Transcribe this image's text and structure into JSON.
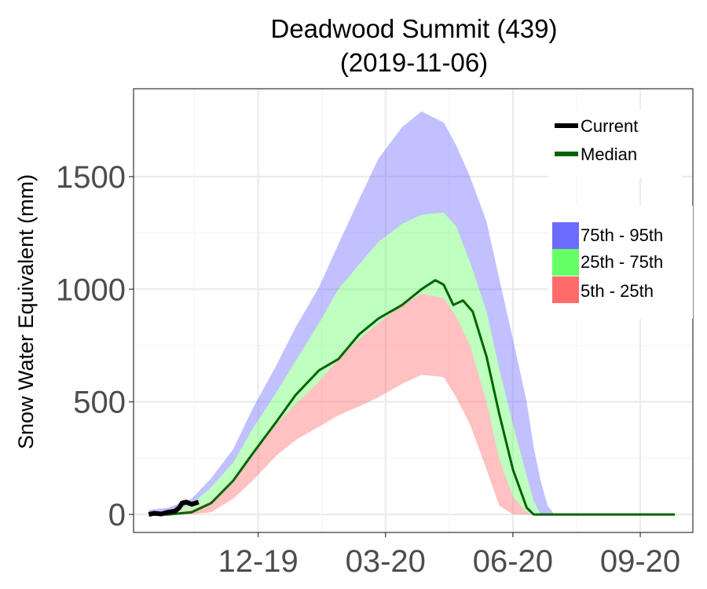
{
  "chart_data": {
    "type": "area",
    "title": "Deadwood Summit (439)",
    "subtitle": "(2019-11-06)",
    "xlabel": "",
    "ylabel": "Snow Water Equivalent (mm)",
    "x_tick_labels": [
      "12-19",
      "03-20",
      "06-20",
      "09-20"
    ],
    "x_tick_dates": [
      "2019-12-19",
      "2020-03-20",
      "2020-06-20",
      "2020-09-20"
    ],
    "y_ticks": [
      0,
      500,
      1000,
      1500
    ],
    "ylim": [
      -80,
      1890
    ],
    "xlim": [
      "2019-09-20",
      "2020-10-28"
    ],
    "grid": true,
    "legend_position": "right",
    "legend_lines": [
      {
        "label": "Current",
        "color": "#000000"
      },
      {
        "label": "Median",
        "color": "#006400"
      }
    ],
    "legend_bands": [
      {
        "label": "75th - 95th",
        "color": "#6b6bff"
      },
      {
        "label": "25th - 75th",
        "color": "#66ff66"
      },
      {
        "label": "5th - 25th",
        "color": "#ff6b6b"
      }
    ],
    "colors": {
      "band_75_95": "rgba(107,107,255,0.42)",
      "band_25_75": "rgba(102,255,102,0.42)",
      "band_5_25": "rgba(255,107,107,0.42)",
      "median": "#006400",
      "current": "#000000"
    },
    "percentiles": {
      "dates": [
        "2019-10-01",
        "2019-10-15",
        "2019-11-01",
        "2019-11-15",
        "2019-12-01",
        "2019-12-15",
        "2020-01-01",
        "2020-01-15",
        "2020-02-01",
        "2020-02-15",
        "2020-03-01",
        "2020-03-15",
        "2020-04-01",
        "2020-04-15",
        "2020-05-01",
        "2020-05-10",
        "2020-05-20",
        "2020-06-01",
        "2020-06-10",
        "2020-06-20",
        "2020-06-30",
        "2020-07-05",
        "2020-07-10",
        "2020-07-15",
        "2020-07-20",
        "2020-07-25",
        "2020-08-01",
        "2020-10-15"
      ],
      "p5": [
        0,
        0,
        0,
        10,
        70,
        150,
        260,
        330,
        390,
        440,
        480,
        520,
        580,
        620,
        610,
        520,
        400,
        200,
        40,
        0,
        0,
        0,
        0,
        0,
        0,
        0,
        0,
        0
      ],
      "p25": [
        0,
        5,
        20,
        60,
        140,
        260,
        400,
        490,
        590,
        690,
        780,
        850,
        930,
        980,
        960,
        880,
        750,
        500,
        250,
        80,
        10,
        0,
        0,
        0,
        0,
        0,
        0,
        0
      ],
      "p75": [
        0,
        10,
        45,
        120,
        230,
        380,
        540,
        680,
        850,
        1000,
        1110,
        1210,
        1290,
        1330,
        1340,
        1280,
        1120,
        900,
        650,
        400,
        170,
        60,
        0,
        0,
        0,
        0,
        0,
        0
      ],
      "p95": [
        20,
        30,
        70,
        160,
        290,
        470,
        660,
        830,
        1010,
        1200,
        1400,
        1580,
        1720,
        1790,
        1740,
        1640,
        1500,
        1300,
        1050,
        780,
        500,
        300,
        150,
        40,
        0,
        0,
        0,
        0
      ]
    },
    "median": {
      "dates": [
        "2019-10-01",
        "2019-10-15",
        "2019-11-01",
        "2019-11-15",
        "2019-12-01",
        "2019-12-15",
        "2020-01-01",
        "2020-01-15",
        "2020-02-01",
        "2020-02-15",
        "2020-03-01",
        "2020-03-15",
        "2020-04-01",
        "2020-04-15",
        "2020-04-25",
        "2020-05-01",
        "2020-05-08",
        "2020-05-15",
        "2020-05-22",
        "2020-06-01",
        "2020-06-10",
        "2020-06-20",
        "2020-06-30",
        "2020-07-05",
        "2020-07-10",
        "2020-08-01",
        "2020-10-15"
      ],
      "values": [
        0,
        0,
        10,
        50,
        150,
        270,
        410,
        530,
        640,
        690,
        800,
        870,
        930,
        1000,
        1040,
        1020,
        930,
        950,
        900,
        700,
        450,
        200,
        30,
        0,
        0,
        0,
        0
      ]
    },
    "current": {
      "dates": [
        "2019-10-01",
        "2019-10-05",
        "2019-10-10",
        "2019-10-15",
        "2019-10-20",
        "2019-10-23",
        "2019-10-25",
        "2019-10-28",
        "2019-11-01",
        "2019-11-06"
      ],
      "values": [
        0,
        5,
        2,
        10,
        15,
        30,
        50,
        55,
        45,
        55
      ]
    }
  }
}
